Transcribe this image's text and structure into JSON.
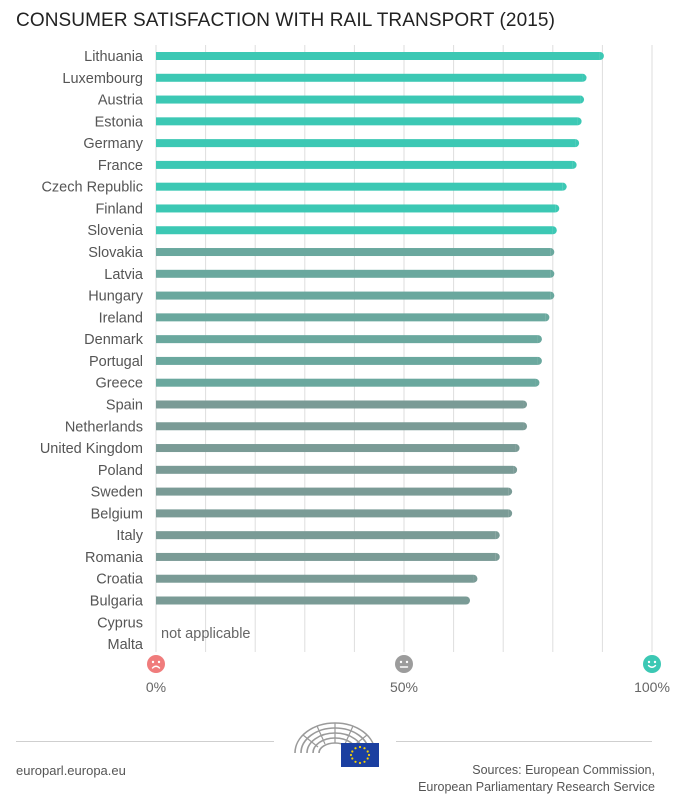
{
  "title": "CONSUMER SATISFACTION WITH RAIL TRANSPORT (2015)",
  "footer": {
    "site": "europarl.europa.eu",
    "source_line1": "Sources: European Commission,",
    "source_line2": "European Parliamentary Research Service"
  },
  "colors": {
    "top_bar": "#3cc8b4",
    "mid_bar": "#6aa89e",
    "low_bar": "#7a9b96",
    "neg_icon": "#f07c7c",
    "neutral_icon": "#9c9c9c",
    "pos_icon": "#3cc8b4"
  },
  "chart_data": {
    "type": "bar",
    "orientation": "horizontal",
    "categories": [
      "Lithuania",
      "Luxembourg",
      "Austria",
      "Estonia",
      "Germany",
      "France",
      "Czech Republic",
      "Finland",
      "Slovenia",
      "Slovakia",
      "Latvia",
      "Hungary",
      "Ireland",
      "Denmark",
      "Portugal",
      "Greece",
      "Spain",
      "Netherlands",
      "United Kingdom",
      "Poland",
      "Sweden",
      "Belgium",
      "Italy",
      "Romania",
      "Croatia",
      "Bulgaria",
      "Cyprus",
      "Malta"
    ],
    "values": [
      89.5,
      86,
      85.5,
      85,
      84.5,
      84,
      82,
      80.5,
      80,
      79.5,
      79.5,
      79.5,
      78.5,
      77,
      77,
      76.5,
      74,
      74,
      72.5,
      72,
      71,
      71,
      68.5,
      68.5,
      64,
      62.5,
      null,
      null
    ],
    "highlight_count": 9,
    "na_label": "not applicable",
    "xlim": [
      0,
      100
    ],
    "x_ticks": [
      {
        "value": 0,
        "label": "0%",
        "icon": "sad-face-icon"
      },
      {
        "value": 50,
        "label": "50%",
        "icon": "neutral-face-icon"
      },
      {
        "value": 100,
        "label": "100%",
        "icon": "happy-face-icon"
      }
    ],
    "grid": true
  }
}
